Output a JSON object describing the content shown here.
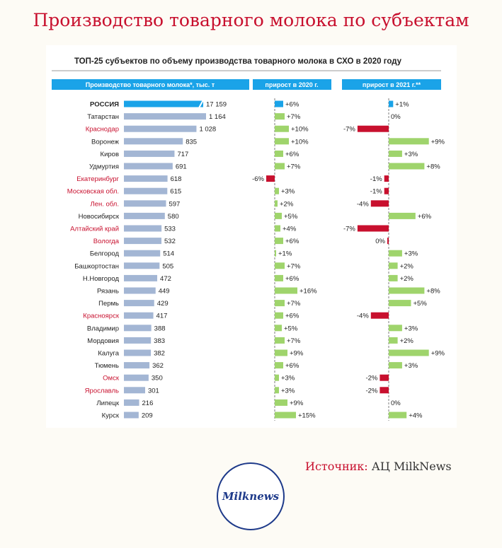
{
  "page": {
    "title": "Производство товарного молока по субъектам",
    "source_label": "Источник:",
    "source_value": "АЦ MilkNews",
    "logo_text": "Milknews"
  },
  "chart_data": {
    "type": "bar",
    "title": "ТОП-25 субъектов по объему производства товарного молока в СХО в 2020 году",
    "headers": {
      "production": "Производство товарного молока*, тыс. т",
      "growth_2020": "прирост в 2020 г.",
      "growth_2021": "прирост в 2021 г.**"
    },
    "colors": {
      "header_bg": "#1aa3e8",
      "russia_bar": "#1aa3e8",
      "bar": "#a3b6d4",
      "positive": "#9fd46c",
      "negative": "#c8102e",
      "highlight_label": "#c8102e"
    },
    "rows": [
      {
        "region": "РОССИЯ",
        "production": 17159,
        "production_label": "17 159",
        "g2020": 6,
        "g2020_label": "+6%",
        "g2021": 1,
        "g2021_label": "+1%",
        "highlight": false,
        "total": true
      },
      {
        "region": "Татарстан",
        "production": 1164,
        "production_label": "1 164",
        "g2020": 7,
        "g2020_label": "+7%",
        "g2021": 0,
        "g2021_label": "0%",
        "highlight": false
      },
      {
        "region": "Краснодар",
        "production": 1028,
        "production_label": "1 028",
        "g2020": 10,
        "g2020_label": "+10%",
        "g2021": -7,
        "g2021_label": "-7%",
        "highlight": true
      },
      {
        "region": "Воронеж",
        "production": 835,
        "production_label": "835",
        "g2020": 10,
        "g2020_label": "+10%",
        "g2021": 9,
        "g2021_label": "+9%",
        "highlight": false
      },
      {
        "region": "Киров",
        "production": 717,
        "production_label": "717",
        "g2020": 6,
        "g2020_label": "+6%",
        "g2021": 3,
        "g2021_label": "+3%",
        "highlight": false
      },
      {
        "region": "Удмуртия",
        "production": 691,
        "production_label": "691",
        "g2020": 7,
        "g2020_label": "+7%",
        "g2021": 8,
        "g2021_label": "+8%",
        "highlight": false
      },
      {
        "region": "Екатеринбург",
        "production": 618,
        "production_label": "618",
        "g2020": -6,
        "g2020_label": "-6%",
        "g2021": -1,
        "g2021_label": "-1%",
        "highlight": true
      },
      {
        "region": "Московская обл.",
        "production": 615,
        "production_label": "615",
        "g2020": 3,
        "g2020_label": "+3%",
        "g2021": -1,
        "g2021_label": "-1%",
        "highlight": true
      },
      {
        "region": "Лен. обл.",
        "production": 597,
        "production_label": "597",
        "g2020": 2,
        "g2020_label": "+2%",
        "g2021": -4,
        "g2021_label": "-4%",
        "highlight": true
      },
      {
        "region": "Новосибирск",
        "production": 580,
        "production_label": "580",
        "g2020": 5,
        "g2020_label": "+5%",
        "g2021": 6,
        "g2021_label": "+6%",
        "highlight": false
      },
      {
        "region": "Алтайский край",
        "production": 533,
        "production_label": "533",
        "g2020": 4,
        "g2020_label": "+4%",
        "g2021": -7,
        "g2021_label": "-7%",
        "highlight": true
      },
      {
        "region": "Вологда",
        "production": 532,
        "production_label": "532",
        "g2020": 6,
        "g2020_label": "+6%",
        "g2021": -0.2,
        "g2021_label": "0%",
        "highlight": true
      },
      {
        "region": "Белгород",
        "production": 514,
        "production_label": "514",
        "g2020": 1,
        "g2020_label": "+1%",
        "g2021": 3,
        "g2021_label": "+3%",
        "highlight": false
      },
      {
        "region": "Башкортостан",
        "production": 505,
        "production_label": "505",
        "g2020": 7,
        "g2020_label": "+7%",
        "g2021": 2,
        "g2021_label": "+2%",
        "highlight": false
      },
      {
        "region": "Н.Новгород",
        "production": 472,
        "production_label": "472",
        "g2020": 6,
        "g2020_label": "+6%",
        "g2021": 2,
        "g2021_label": "+2%",
        "highlight": false
      },
      {
        "region": "Рязань",
        "production": 449,
        "production_label": "449",
        "g2020": 16,
        "g2020_label": "+16%",
        "g2021": 8,
        "g2021_label": "+8%",
        "highlight": false
      },
      {
        "region": "Пермь",
        "production": 429,
        "production_label": "429",
        "g2020": 7,
        "g2020_label": "+7%",
        "g2021": 5,
        "g2021_label": "+5%",
        "highlight": false
      },
      {
        "region": "Красноярск",
        "production": 417,
        "production_label": "417",
        "g2020": 6,
        "g2020_label": "+6%",
        "g2021": -4,
        "g2021_label": "-4%",
        "highlight": true
      },
      {
        "region": "Владимир",
        "production": 388,
        "production_label": "388",
        "g2020": 5,
        "g2020_label": "+5%",
        "g2021": 3,
        "g2021_label": "+3%",
        "highlight": false
      },
      {
        "region": "Мордовия",
        "production": 383,
        "production_label": "383",
        "g2020": 7,
        "g2020_label": "+7%",
        "g2021": 2,
        "g2021_label": "+2%",
        "highlight": false
      },
      {
        "region": "Калуга",
        "production": 382,
        "production_label": "382",
        "g2020": 9,
        "g2020_label": "+9%",
        "g2021": 9,
        "g2021_label": "+9%",
        "highlight": false
      },
      {
        "region": "Тюмень",
        "production": 362,
        "production_label": "362",
        "g2020": 6,
        "g2020_label": "+6%",
        "g2021": 3,
        "g2021_label": "+3%",
        "highlight": false
      },
      {
        "region": "Омск",
        "production": 350,
        "production_label": "350",
        "g2020": 3,
        "g2020_label": "+3%",
        "g2021": -2,
        "g2021_label": "-2%",
        "highlight": true
      },
      {
        "region": "Ярославль",
        "production": 301,
        "production_label": "301",
        "g2020": 3,
        "g2020_label": "+3%",
        "g2021": -2,
        "g2021_label": "-2%",
        "highlight": true
      },
      {
        "region": "Липецк",
        "production": 216,
        "production_label": "216",
        "g2020": 9,
        "g2020_label": "+9%",
        "g2021": 0,
        "g2021_label": "0%",
        "highlight": false
      },
      {
        "region": "Курск",
        "production": 209,
        "production_label": "209",
        "g2020": 15,
        "g2020_label": "+15%",
        "g2021": 4,
        "g2021_label": "+4%",
        "highlight": false
      }
    ]
  }
}
